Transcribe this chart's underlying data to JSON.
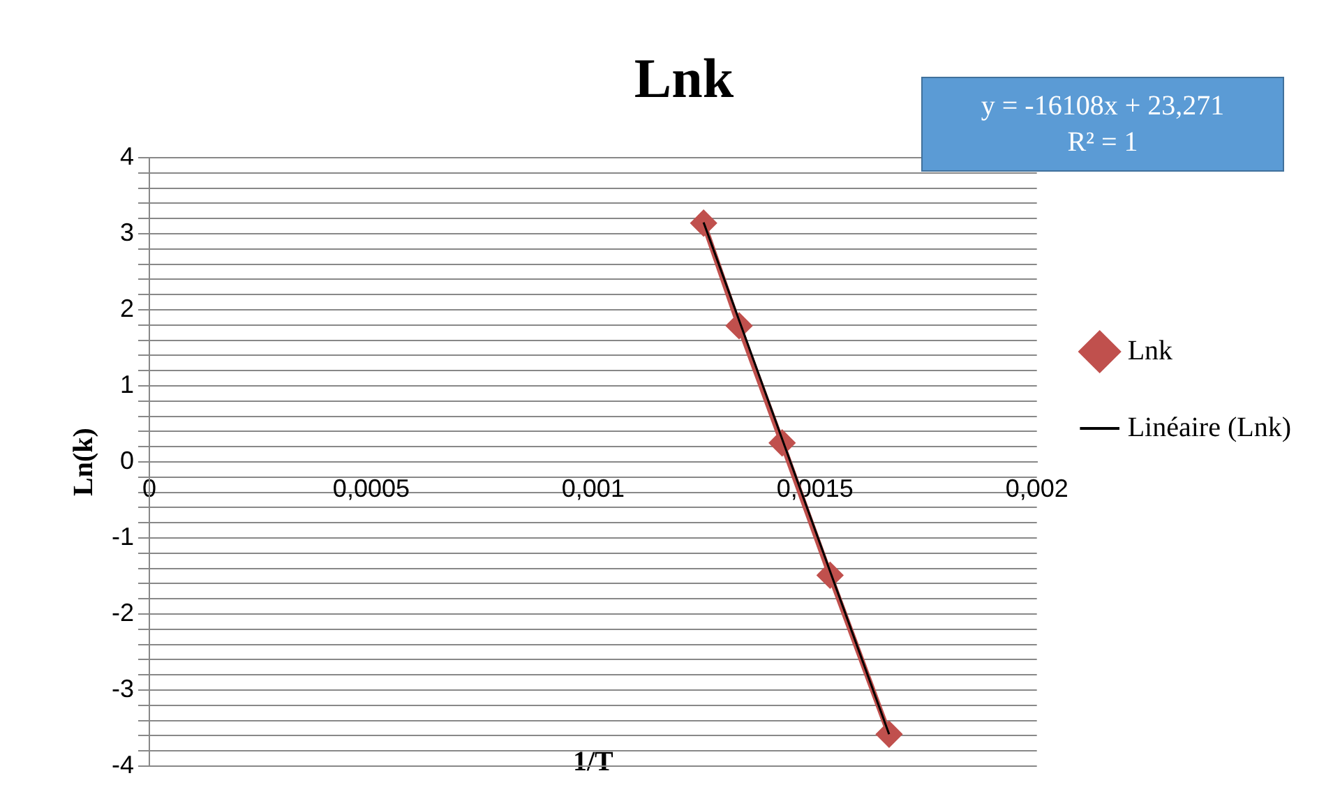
{
  "chart_data": {
    "type": "scatter",
    "title": "Lnk",
    "xlabel": "1/T",
    "ylabel": "Ln(k)",
    "xlim": [
      0,
      0.002
    ],
    "xticks": [
      {
        "value": 0,
        "label": "0"
      },
      {
        "value": 0.0005,
        "label": "0,0005"
      },
      {
        "value": 0.001,
        "label": "0,001"
      },
      {
        "value": 0.0015,
        "label": "0,0015"
      },
      {
        "value": 0.002,
        "label": "0,002"
      }
    ],
    "ylim": [
      -4,
      4
    ],
    "yticks": [
      -4,
      {
        "value": -3.8,
        "label": null
      },
      {
        "value": -3.6,
        "label": null
      },
      {
        "value": -3.4,
        "label": null
      },
      {
        "value": -3.2,
        "label": null
      },
      -3,
      {
        "value": -2.8,
        "label": null
      },
      {
        "value": -2.6,
        "label": null
      },
      {
        "value": -2.4,
        "label": null
      },
      {
        "value": -2.2,
        "label": null
      },
      -2,
      {
        "value": -1.8,
        "label": null
      },
      {
        "value": -1.6,
        "label": null
      },
      {
        "value": -1.4,
        "label": null
      },
      {
        "value": -1.2,
        "label": null
      },
      -1,
      {
        "value": -0.8,
        "label": null
      },
      {
        "value": -0.6,
        "label": null
      },
      {
        "value": -0.4,
        "label": null
      },
      {
        "value": -0.2,
        "label": null
      },
      0,
      {
        "value": 0.2,
        "label": null
      },
      {
        "value": 0.4,
        "label": null
      },
      {
        "value": 0.6,
        "label": null
      },
      {
        "value": 0.8,
        "label": null
      },
      1,
      {
        "value": 1.2,
        "label": null
      },
      {
        "value": 1.4,
        "label": null
      },
      {
        "value": 1.6,
        "label": null
      },
      {
        "value": 1.8,
        "label": null
      },
      2,
      {
        "value": 2.2,
        "label": null
      },
      {
        "value": 2.4,
        "label": null
      },
      {
        "value": 2.6,
        "label": null
      },
      {
        "value": 2.8,
        "label": null
      },
      3,
      {
        "value": 3.2,
        "label": null
      },
      {
        "value": 3.4,
        "label": null
      },
      {
        "value": 3.6,
        "label": null
      },
      {
        "value": 3.8,
        "label": null
      },
      4
    ],
    "grid": "y",
    "legend": "right",
    "line_style": "solid",
    "annotations": [
      "y = -16108x + 23,271",
      "R² = 1"
    ],
    "series": [
      {
        "name": "Lnk",
        "type": "line",
        "color": "#c0504d",
        "marker": "diamond",
        "x": [
          0.001249,
          0.001329,
          0.001426,
          0.001534,
          0.001667
        ],
        "values": [
          3.14,
          1.79,
          0.25,
          -1.49,
          -3.58
        ]
      },
      {
        "name": "Linéaire (Lnk)",
        "type": "line",
        "color": "#000000",
        "marker": "none",
        "x": [
          0.001249,
          0.001667
        ],
        "values": [
          3.15,
          -3.58
        ]
      }
    ]
  }
}
